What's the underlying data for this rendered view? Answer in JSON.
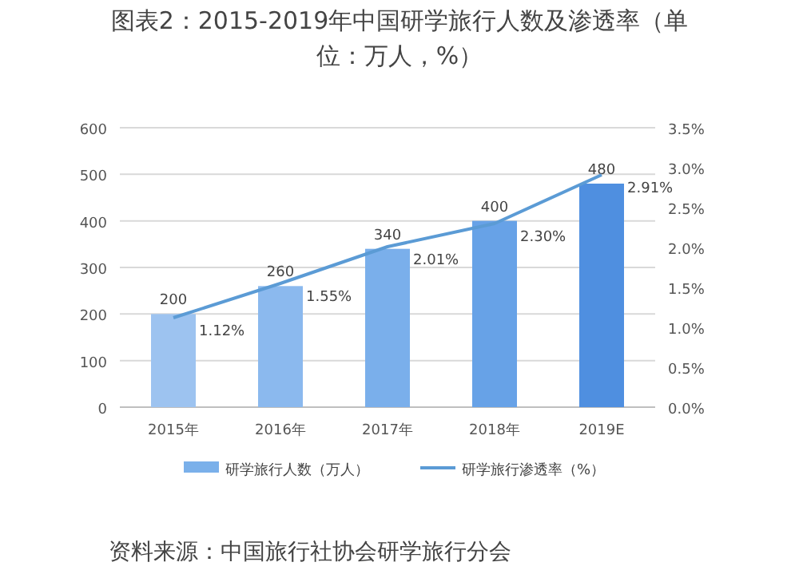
{
  "chart_data": {
    "type": "bar",
    "title": "图表2：2015-2019年中国研学旅行人数及渗透率（单位：万人，%）",
    "categories": [
      "2015年",
      "2016年",
      "2017年",
      "2018年",
      "2019E"
    ],
    "series": [
      {
        "name": "研学旅行人数（万人）",
        "color": "#7ab0ea",
        "colors": [
          "#9dc3f0",
          "#8bb9ee",
          "#7aafeb",
          "#67a2e7",
          "#4f8fe0"
        ],
        "values": [
          200,
          260,
          340,
          400,
          480
        ],
        "value_labels": [
          "200",
          "260",
          "340",
          "400",
          "480"
        ]
      },
      {
        "name": "研学旅行渗透率（%）",
        "type": "line",
        "axis": "y2",
        "color": "#5b9bd5",
        "values": [
          1.12,
          1.55,
          2.01,
          2.3,
          2.91
        ],
        "value_labels": [
          "1.12%",
          "1.55%",
          "2.01%",
          "2.30%",
          "2.91%"
        ]
      }
    ],
    "ylim": [
      0,
      600
    ],
    "yticks": [
      0,
      100,
      200,
      300,
      400,
      500,
      600
    ],
    "y2lim": [
      0,
      3.5
    ],
    "y2ticks": [
      {
        "value": 0,
        "label": "0.0%"
      },
      {
        "value": 0.5,
        "label": "0.5%"
      },
      {
        "value": 1,
        "label": "1.0%"
      },
      {
        "value": 1.5,
        "label": "1.5%"
      },
      {
        "value": 2,
        "label": "2.0%"
      },
      {
        "value": 2.5,
        "label": "2.5%"
      },
      {
        "value": 3,
        "label": "3.0%"
      },
      {
        "value": 3.5,
        "label": "3.5%"
      }
    ],
    "grid": "y",
    "legend": "bottom",
    "marker": "none",
    "annotations": [
      "资料来源：中国旅行社协会研学旅行分会"
    ]
  }
}
